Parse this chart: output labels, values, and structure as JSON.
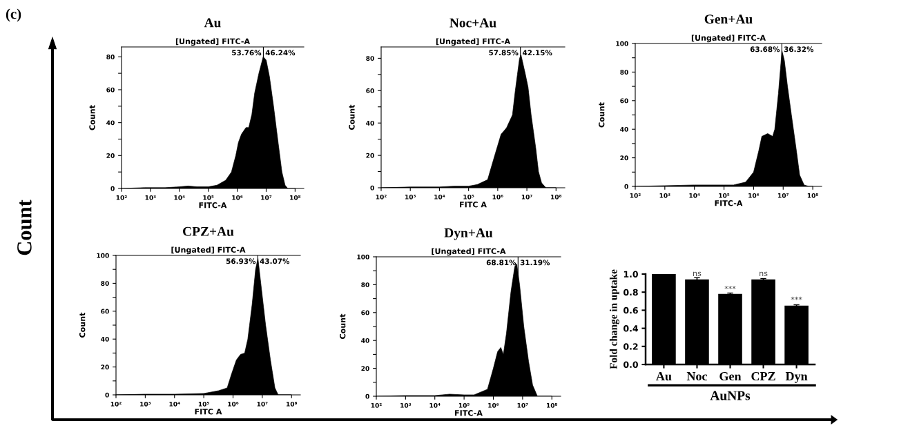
{
  "chart_data": [
    {
      "type": "other",
      "annotations": [
        "(c)",
        "Count"
      ]
    },
    {
      "type": "area",
      "title": "Au",
      "subtitle": "[Ungated] FITC-A",
      "xlabel": "FITC-A",
      "ylabel": "Count",
      "log": "x",
      "color": "#000000",
      "x": [
        100,
        630,
        3200,
        10000.0,
        20000.0,
        40000.0,
        100000.0,
        200000.0,
        400000.0,
        630000.0,
        890000.0,
        1100000.0,
        1400000.0,
        2000000.0,
        2500000.0,
        3200000.0,
        4000000.0,
        5600000.0,
        7900000.0,
        10000000.0,
        13000000.0,
        18000000.0,
        25000000.0,
        35000000.0,
        45000000.0,
        56000000.0,
        100000000.0
      ],
      "values": [
        0,
        0.5,
        0.5,
        1,
        1.5,
        1,
        1,
        2,
        5,
        10,
        20,
        28,
        33,
        37,
        37,
        45,
        58,
        70,
        80,
        78,
        68,
        50,
        30,
        10,
        2,
        0,
        0
      ],
      "xlim": [
        100,
        200000000.0
      ],
      "xticks": [
        {
          "value": 100,
          "label": "10²"
        },
        {
          "value": 1000,
          "label": "10³"
        },
        {
          "value": 10000,
          "label": "10⁴"
        },
        {
          "value": 100000,
          "label": "10⁵"
        },
        {
          "value": 1000000,
          "label": "10⁶"
        },
        {
          "value": 10000000,
          "label": "10⁷"
        },
        {
          "value": 100000000,
          "label": "10⁸"
        }
      ],
      "ylim": [
        0,
        86
      ],
      "yticks": [
        0,
        {
          "value": 10,
          "label": null
        },
        20,
        {
          "value": 30,
          "label": null
        },
        40,
        {
          "value": 50,
          "label": null
        },
        60,
        {
          "value": 70,
          "label": null
        },
        80
      ],
      "ref_lines": [
        {
          "axis": "x",
          "value": 8000000.0
        }
      ],
      "annotations": [
        "53.76%",
        "46.24%"
      ]
    },
    {
      "type": "area",
      "title": "Noc+Au",
      "subtitle": "[Ungated] FITC-A",
      "xlabel": "FITC A",
      "ylabel": "Count",
      "log": "x",
      "color": "#000000",
      "x": [
        100,
        1000,
        10000.0,
        32000.0,
        100000.0,
        200000.0,
        450000.0,
        790000.0,
        1300000.0,
        2000000.0,
        3200000.0,
        4000000.0,
        5600000.0,
        6300000.0,
        8900000.0,
        11000000.0,
        14000000.0,
        20000000.0,
        25000000.0,
        32000000.0,
        45000000.0,
        100000000.0
      ],
      "values": [
        0,
        0.5,
        0.5,
        1,
        1,
        2,
        5,
        20,
        33,
        37,
        45,
        60,
        80,
        82,
        70,
        62,
        45,
        25,
        10,
        3,
        0,
        0
      ],
      "xlim": [
        100,
        200000000.0
      ],
      "xticks": [
        {
          "value": 100,
          "label": "10²"
        },
        {
          "value": 1000,
          "label": "10³"
        },
        {
          "value": 10000,
          "label": "10⁴"
        },
        {
          "value": 100000,
          "label": "10⁵"
        },
        {
          "value": 1000000,
          "label": "10⁶"
        },
        {
          "value": 10000000,
          "label": "10⁷"
        },
        {
          "value": 100000000,
          "label": "10⁸"
        }
      ],
      "ylim": [
        0,
        87
      ],
      "yticks": [
        0,
        {
          "value": 10,
          "label": null
        },
        20,
        {
          "value": 30,
          "label": null
        },
        40,
        {
          "value": 50,
          "label": null
        },
        60,
        {
          "value": 70,
          "label": null
        },
        80
      ],
      "ref_lines": [
        {
          "axis": "x",
          "value": 6000000.0
        }
      ],
      "annotations": [
        "57.85%",
        "42.15%"
      ]
    },
    {
      "type": "area",
      "title": "Gen+Au",
      "subtitle": "[Ungated] FITC-A",
      "xlabel": "FITC-A",
      "ylabel": "Count",
      "log": "x",
      "color": "#000000",
      "x": [
        100,
        1000,
        10000.0,
        100000.0,
        210000.0,
        540000.0,
        1000000.0,
        1500000.0,
        1900000.0,
        3000000.0,
        4400000.0,
        5200000.0,
        6900000.0,
        9100000.0,
        11000000.0,
        14000000.0,
        19000000.0,
        28000000.0,
        36000000.0,
        51000000.0,
        74000000.0,
        100000000.0
      ],
      "values": [
        0,
        0.5,
        1,
        1,
        1,
        3,
        10,
        25,
        35,
        37,
        35,
        40,
        65,
        95,
        88,
        70,
        50,
        25,
        8,
        1,
        0,
        0
      ],
      "xlim": [
        100,
        200000000.0
      ],
      "xticks": [
        {
          "value": 100,
          "label": "10²"
        },
        {
          "value": 1000,
          "label": "10³"
        },
        {
          "value": 10000,
          "label": "10⁴"
        },
        {
          "value": 100000,
          "label": "10⁵"
        },
        {
          "value": 1000000,
          "label": "10⁶"
        },
        {
          "value": 10000000,
          "label": "10⁷"
        },
        {
          "value": 100000000,
          "label": "10⁸"
        }
      ],
      "ylim": [
        0,
        100
      ],
      "yticks": [
        0,
        {
          "value": 10,
          "label": null
        },
        20,
        {
          "value": 30,
          "label": null
        },
        40,
        {
          "value": 50,
          "label": null
        },
        60,
        {
          "value": 70,
          "label": null
        },
        80,
        {
          "value": 90,
          "label": null
        },
        100
      ],
      "ref_lines": [
        {
          "axis": "x",
          "value": 9000000.0
        }
      ],
      "annotations": [
        "63.68%",
        "36.32%"
      ]
    },
    {
      "type": "area",
      "title": "CPZ+Au",
      "subtitle": "[Ungated] FITC-A",
      "xlabel": "FITC A",
      "ylabel": "Count",
      "log": "x",
      "color": "#000000",
      "x": [
        100,
        1000,
        10000.0,
        100000.0,
        320000.0,
        630000.0,
        890000.0,
        1300000.0,
        1800000.0,
        2500000.0,
        3200000.0,
        4500000.0,
        5900000.0,
        7100000.0,
        8900000.0,
        13000000.0,
        19000000.0,
        27000000.0,
        35000000.0,
        100000000.0
      ],
      "values": [
        0,
        0.5,
        0.5,
        1,
        3,
        5,
        15,
        25,
        29,
        30,
        40,
        65,
        90,
        98,
        80,
        50,
        25,
        5,
        0,
        0
      ],
      "xlim": [
        100,
        200000000.0
      ],
      "xticks": [
        {
          "value": 100,
          "label": "10²"
        },
        {
          "value": 1000,
          "label": "10³"
        },
        {
          "value": 10000,
          "label": "10⁴"
        },
        {
          "value": 100000,
          "label": "10⁵"
        },
        {
          "value": 1000000,
          "label": "10⁶"
        },
        {
          "value": 10000000,
          "label": "10⁷"
        },
        {
          "value": 100000000,
          "label": "10⁸"
        }
      ],
      "ylim": [
        0,
        100
      ],
      "yticks": [
        0,
        {
          "value": 10,
          "label": null
        },
        20,
        {
          "value": 30,
          "label": null
        },
        40,
        {
          "value": 50,
          "label": null
        },
        60,
        {
          "value": 70,
          "label": null
        },
        80,
        {
          "value": 90,
          "label": null
        },
        100
      ],
      "ref_lines": [
        {
          "axis": "x",
          "value": 7000000.0
        }
      ],
      "annotations": [
        "56.93%",
        "43.07%"
      ]
    },
    {
      "type": "area",
      "title": "Dyn+Au",
      "subtitle": "[Ungated] FITC-A",
      "xlabel": "FITC-A",
      "ylabel": "Count",
      "log": "x",
      "color": "#000000",
      "x": [
        100,
        1000,
        10000.0,
        32000.0,
        100000.0,
        220000.0,
        630000.0,
        1000000.0,
        1400000.0,
        1800000.0,
        2200000.0,
        2800000.0,
        4000000.0,
        5400000.0,
        6300000.0,
        7900000.0,
        11000000.0,
        16000000.0,
        22000000.0,
        32000000.0,
        100000000.0
      ],
      "values": [
        0,
        0.5,
        0.5,
        1.5,
        1,
        1,
        5,
        20,
        32,
        35,
        30,
        45,
        75,
        93,
        95,
        80,
        50,
        25,
        8,
        0,
        0
      ],
      "xlim": [
        100,
        200000000.0
      ],
      "xticks": [
        {
          "value": 100,
          "label": "10²"
        },
        {
          "value": 1000,
          "label": "10³"
        },
        {
          "value": 10000,
          "label": "10⁴"
        },
        {
          "value": 100000,
          "label": "10⁵"
        },
        {
          "value": 1000000,
          "label": "10⁶"
        },
        {
          "value": 10000000,
          "label": "10⁷"
        },
        {
          "value": 100000000,
          "label": "10⁸"
        }
      ],
      "ylim": [
        0,
        100
      ],
      "yticks": [
        0,
        {
          "value": 10,
          "label": null
        },
        20,
        {
          "value": 30,
          "label": null
        },
        40,
        {
          "value": 50,
          "label": null
        },
        60,
        {
          "value": 70,
          "label": null
        },
        80,
        {
          "value": 90,
          "label": null
        },
        100
      ],
      "ref_lines": [
        {
          "axis": "x",
          "value": 7000000.0
        }
      ],
      "annotations": [
        "68.81%",
        "31.19%"
      ]
    },
    {
      "type": "bar",
      "categories": [
        "Au",
        "Noc",
        "Gen",
        "CPZ",
        "Dyn"
      ],
      "values": [
        1.0,
        0.94,
        0.78,
        0.94,
        0.65
      ],
      "color": "#000000",
      "errors": [
        null,
        0.02,
        0.01,
        0.01,
        0.01
      ],
      "xlabel": "AuNPs",
      "ylabel": "Fold change in uptake",
      "ylim": [
        0,
        1.0
      ],
      "yticks": [
        {
          "value": 0,
          "label": "0.0"
        },
        {
          "value": 0.2,
          "label": "0.2"
        },
        {
          "value": 0.4,
          "label": "0.4"
        },
        {
          "value": 0.6,
          "label": "0.6"
        },
        {
          "value": 0.8,
          "label": "0.8"
        },
        {
          "value": 1.0,
          "label": "1.0"
        }
      ],
      "annotations": [
        {
          "text": "ns",
          "x": "Noc",
          "y": 0.96
        },
        {
          "text": "***",
          "x": "Gen",
          "y": 0.79
        },
        {
          "text": "ns",
          "x": "CPZ",
          "y": 0.96
        },
        {
          "text": "***",
          "x": "Dyn",
          "y": 0.67
        }
      ]
    }
  ]
}
